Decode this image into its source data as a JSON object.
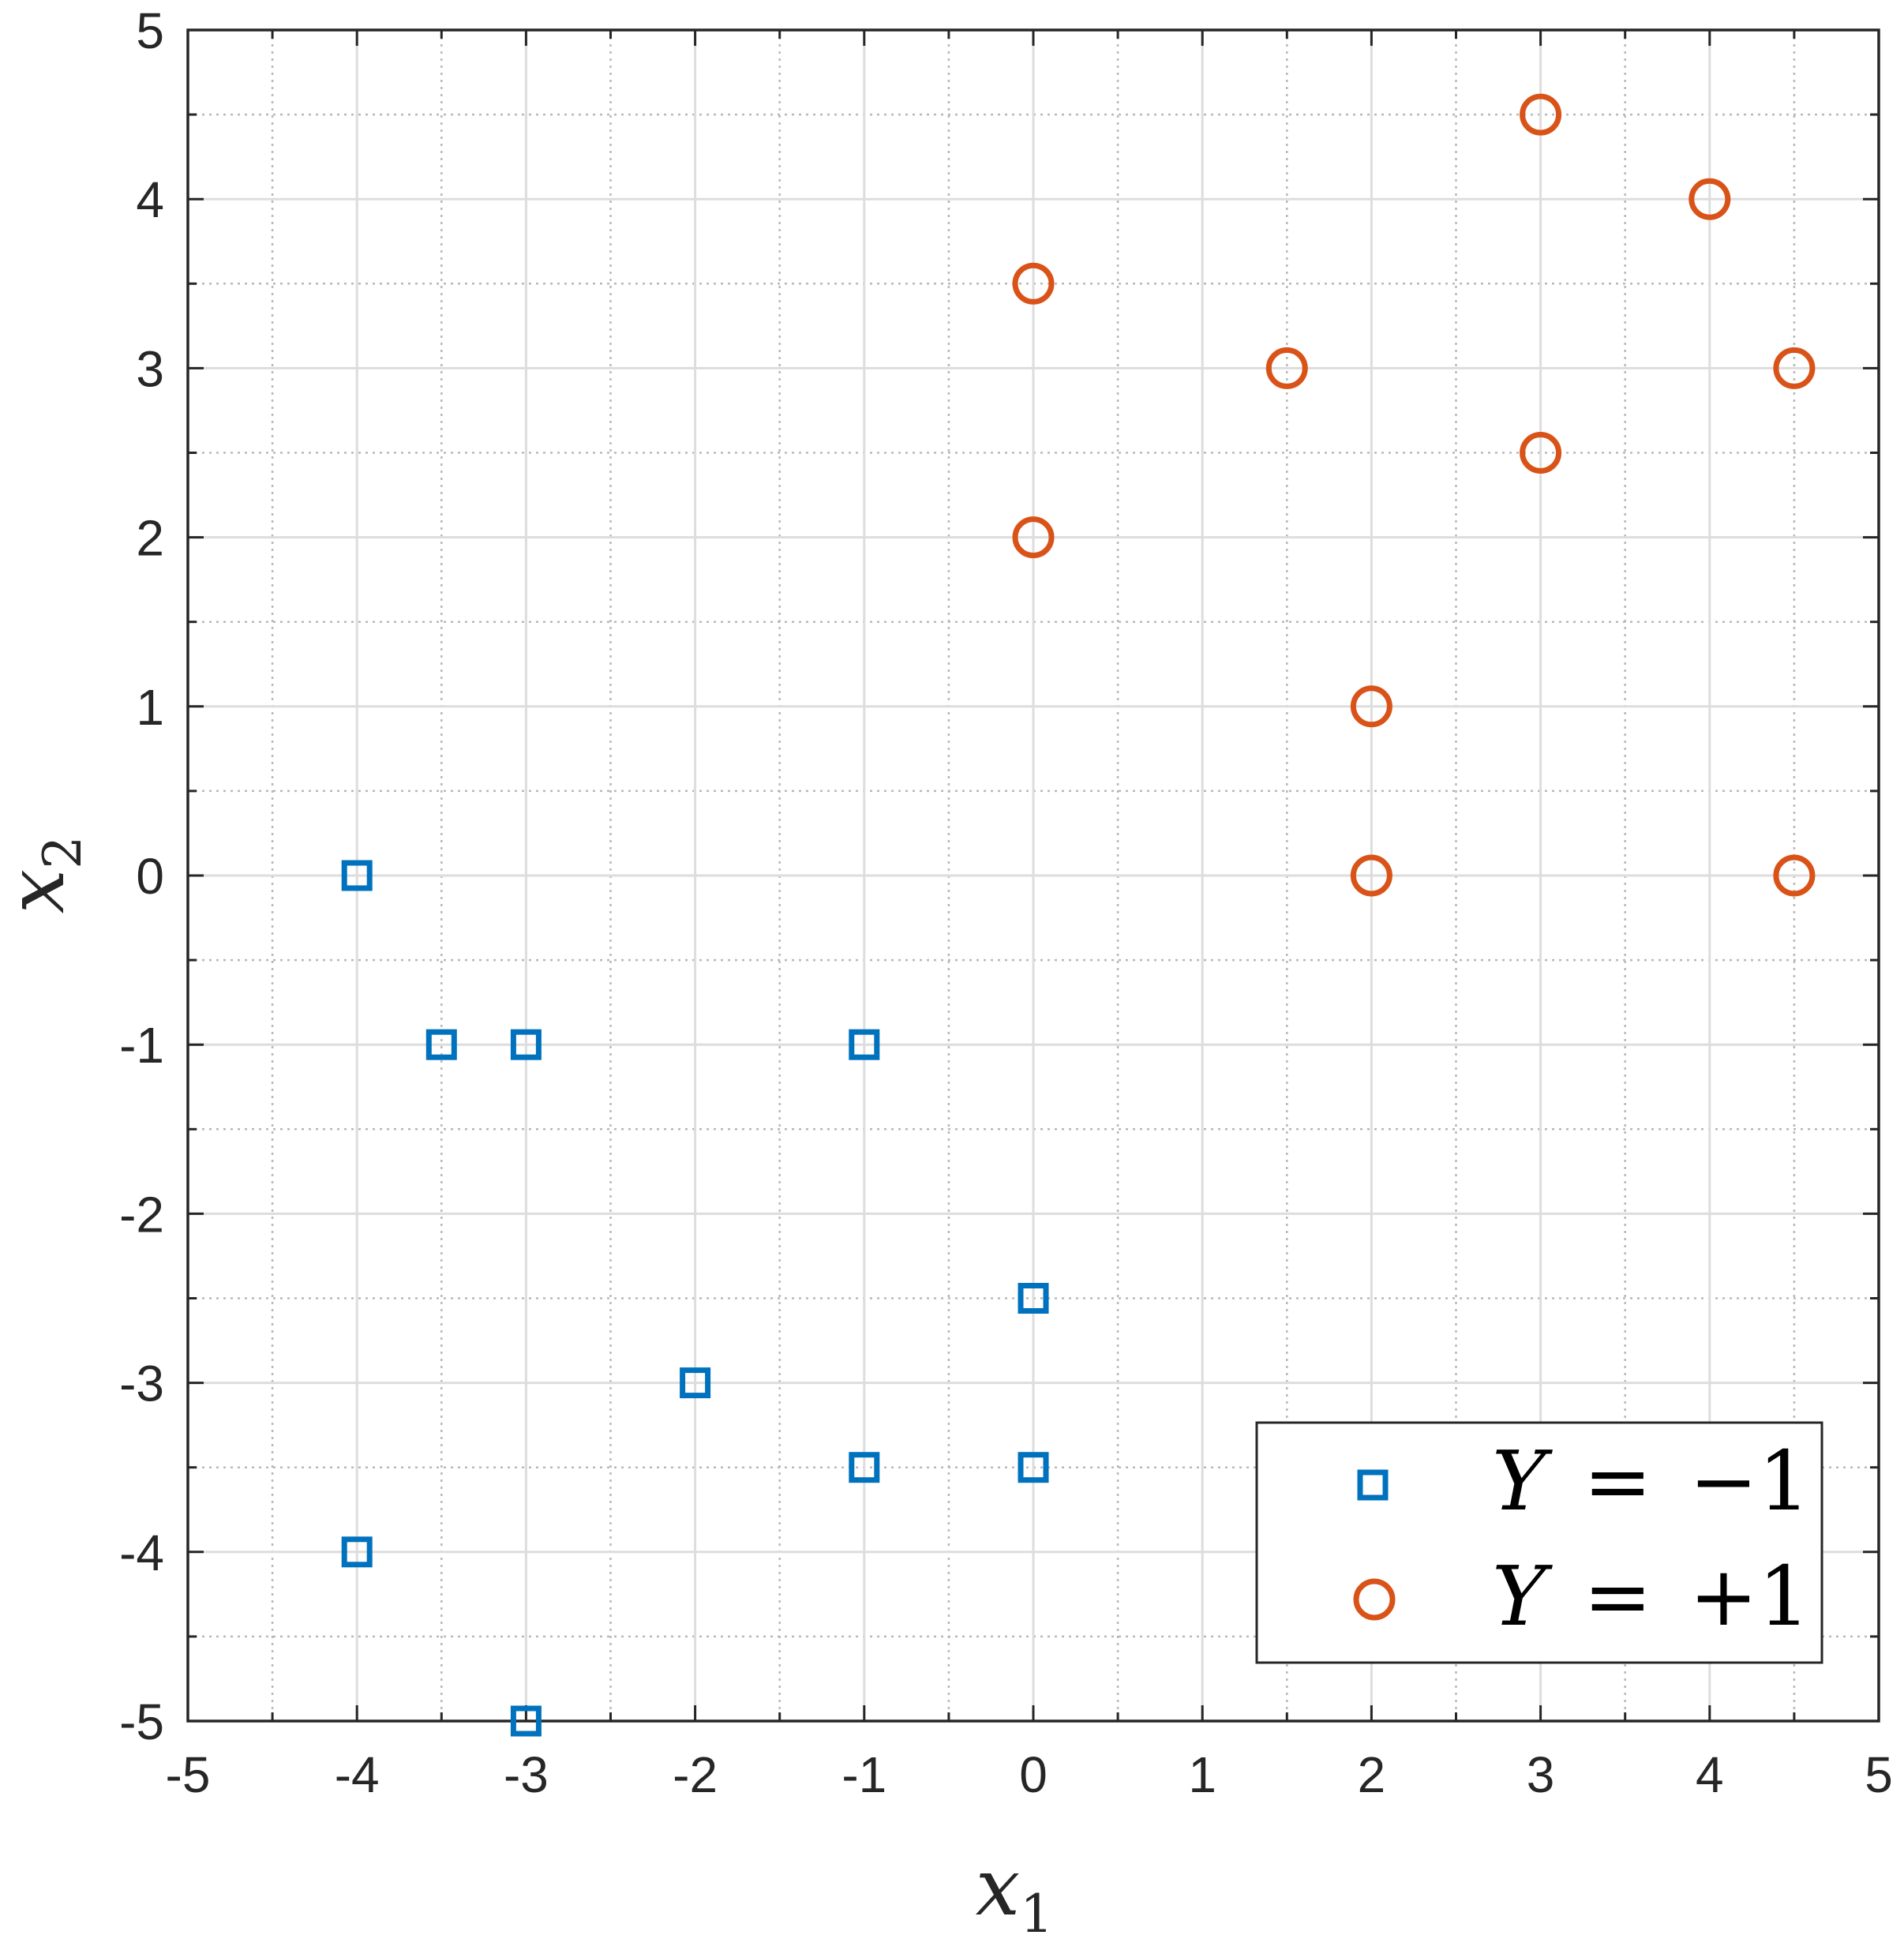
{
  "chart_data": {
    "type": "scatter",
    "title": "",
    "xlabel": {
      "base": "x",
      "sub": "1"
    },
    "ylabel": {
      "base": "x",
      "sub": "2"
    },
    "xlim": [
      -5,
      5
    ],
    "ylim": [
      -5,
      5
    ],
    "major_step": 1,
    "minor_step": 0.5,
    "xticks": [
      "-5",
      "-4",
      "-3",
      "-2",
      "-1",
      "0",
      "1",
      "2",
      "3",
      "4",
      "5"
    ],
    "yticks": [
      "-5",
      "-4",
      "-3",
      "-2",
      "-1",
      "0",
      "1",
      "2",
      "3",
      "4",
      "5"
    ],
    "grid": true,
    "minor_grid": true,
    "legend_position": "bottom-right",
    "series": [
      {
        "name": "Y = −1",
        "legend": {
          "var": "Y",
          "op": "=",
          "value": "−1"
        },
        "marker": "square",
        "color": "#0072BD",
        "points": [
          [
            -4,
            0
          ],
          [
            -3.5,
            -1
          ],
          [
            -3,
            -1
          ],
          [
            -1,
            -1
          ],
          [
            0,
            -2.5
          ],
          [
            -2,
            -3
          ],
          [
            -1,
            -3.5
          ],
          [
            0,
            -3.5
          ],
          [
            -4,
            -4
          ],
          [
            -3,
            -5
          ]
        ]
      },
      {
        "name": "Y = +1",
        "legend": {
          "var": "Y",
          "op": "=",
          "value": "+1"
        },
        "marker": "circle",
        "color": "#D95319",
        "points": [
          [
            3,
            4.5
          ],
          [
            4,
            4
          ],
          [
            0,
            3.5
          ],
          [
            1.5,
            3
          ],
          [
            4.5,
            3
          ],
          [
            3,
            2.5
          ],
          [
            0,
            2
          ],
          [
            2,
            1
          ],
          [
            2,
            0
          ],
          [
            4.5,
            0
          ]
        ]
      }
    ]
  }
}
